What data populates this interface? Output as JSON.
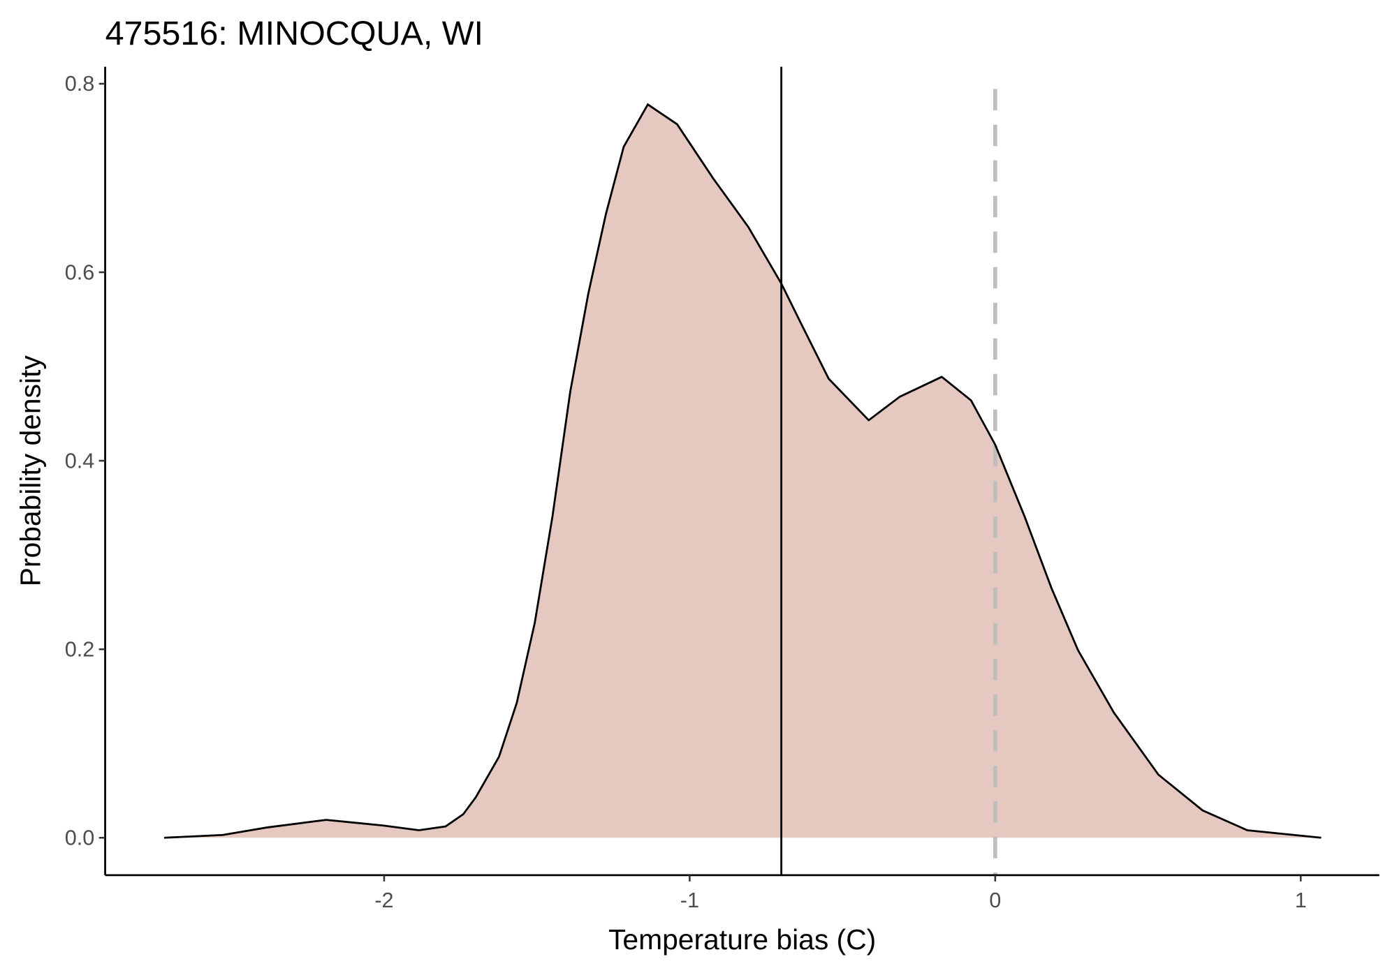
{
  "chart_data": {
    "type": "density",
    "title": "475516: MINOCQUA, WI",
    "x_label": "Temperature bias (C)",
    "y_label": "Probability density",
    "x": [
      -2.72,
      -2.528,
      -2.382,
      -2.19,
      -2.003,
      -1.886,
      -1.799,
      -1.741,
      -1.7,
      -1.624,
      -1.566,
      -1.507,
      -1.449,
      -1.391,
      -1.332,
      -1.274,
      -1.216,
      -1.137,
      -1.041,
      -0.924,
      -0.808,
      -0.7,
      -0.633,
      -0.545,
      -0.414,
      -0.312,
      -0.175,
      -0.079,
      0,
      0.096,
      0.184,
      0.271,
      0.388,
      0.534,
      0.679,
      0.825,
      1.067
    ],
    "values": [
      0,
      0.003,
      0.011,
      0.019,
      0.013,
      0.008,
      0.012,
      0.025,
      0.043,
      0.086,
      0.143,
      0.228,
      0.341,
      0.473,
      0.577,
      0.662,
      0.733,
      0.778,
      0.757,
      0.7,
      0.648,
      0.588,
      0.544,
      0.487,
      0.443,
      0.468,
      0.489,
      0.464,
      0.417,
      0.341,
      0.265,
      0.199,
      0.133,
      0.067,
      0.029,
      0.008,
      0
    ],
    "fill_color": "#e5c8c0",
    "line_color": "#000000",
    "mean_line": -0.7,
    "reference_line": 0,
    "reference_color": "#bebebe",
    "xlim": [
      -2.913,
      1.257
    ],
    "ylim": [
      -0.0397,
      0.818
    ],
    "xticks": [
      -2,
      -1,
      0,
      1
    ],
    "yticks": [
      {
        "value": 0,
        "label": "0.0"
      },
      {
        "value": 0.2,
        "label": "0.2"
      },
      {
        "value": 0.4,
        "label": "0.4"
      },
      {
        "value": 0.6,
        "label": "0.6"
      },
      {
        "value": 0.8,
        "label": "0.8"
      }
    ]
  }
}
